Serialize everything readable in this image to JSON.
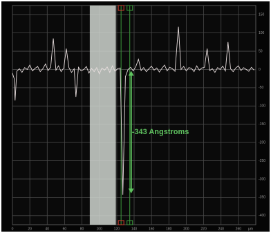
{
  "chart_data": {
    "type": "line",
    "x_label": "µm",
    "x": [
      0,
      2,
      3,
      5,
      8,
      11,
      14,
      17,
      20,
      23,
      26,
      29,
      32,
      35,
      38,
      41,
      44,
      47,
      50,
      53,
      56,
      59,
      62,
      65,
      68,
      71,
      73,
      76,
      79,
      82,
      85,
      88,
      91,
      94,
      97,
      100,
      103,
      106,
      109,
      112,
      115,
      118,
      121,
      124,
      127,
      130,
      133,
      136,
      139,
      142,
      145,
      148,
      151,
      154,
      157,
      160,
      163,
      166,
      169,
      172,
      175,
      178,
      181,
      184,
      187,
      191,
      194,
      197,
      200,
      203,
      206,
      209,
      212,
      215,
      218,
      221,
      224,
      227,
      230,
      233,
      236,
      239,
      242,
      245,
      248,
      251,
      254,
      257,
      260,
      263,
      266,
      269,
      272,
      275,
      278
    ],
    "values": [
      -10,
      -25,
      -85,
      -5,
      2,
      -8,
      5,
      0,
      12,
      -4,
      3,
      8,
      -6,
      2,
      15,
      -3,
      6,
      85,
      -2,
      10,
      -6,
      4,
      57,
      5,
      -8,
      2,
      -75,
      6,
      -4,
      0,
      8,
      -10,
      3,
      -6,
      5,
      -12,
      4,
      -2,
      7,
      -8,
      10,
      -5,
      2,
      4,
      -343,
      -20,
      0,
      6,
      -4,
      8,
      28,
      -3,
      5,
      -6,
      2,
      9,
      -2,
      4,
      -7,
      3,
      12,
      -4,
      6,
      2,
      -5,
      117,
      0,
      8,
      -4,
      5,
      3,
      -6,
      10,
      -2,
      4,
      6,
      57,
      -3,
      2,
      -8,
      5,
      0,
      9,
      -4,
      75,
      2,
      -6,
      4,
      10,
      -3,
      5,
      0,
      -5,
      6,
      -2
    ],
    "color": "#e8dede",
    "xlim": [
      0,
      280
    ],
    "xticks": [
      0,
      20,
      40,
      60,
      80,
      100,
      120,
      140,
      160,
      180,
      200,
      220,
      240,
      260
    ],
    "ylim": [
      -425,
      175
    ],
    "yticks": [
      -400,
      -350,
      -300,
      -250,
      -200,
      -150,
      -100,
      -50,
      0,
      50,
      100,
      150
    ],
    "grid": true,
    "selection": [
      89,
      119
    ],
    "cursors": [
      125,
      135
    ],
    "measurement": {
      "value": -343,
      "label": "-343 Angstroms"
    },
    "annotation_color": "#5fc25f"
  }
}
